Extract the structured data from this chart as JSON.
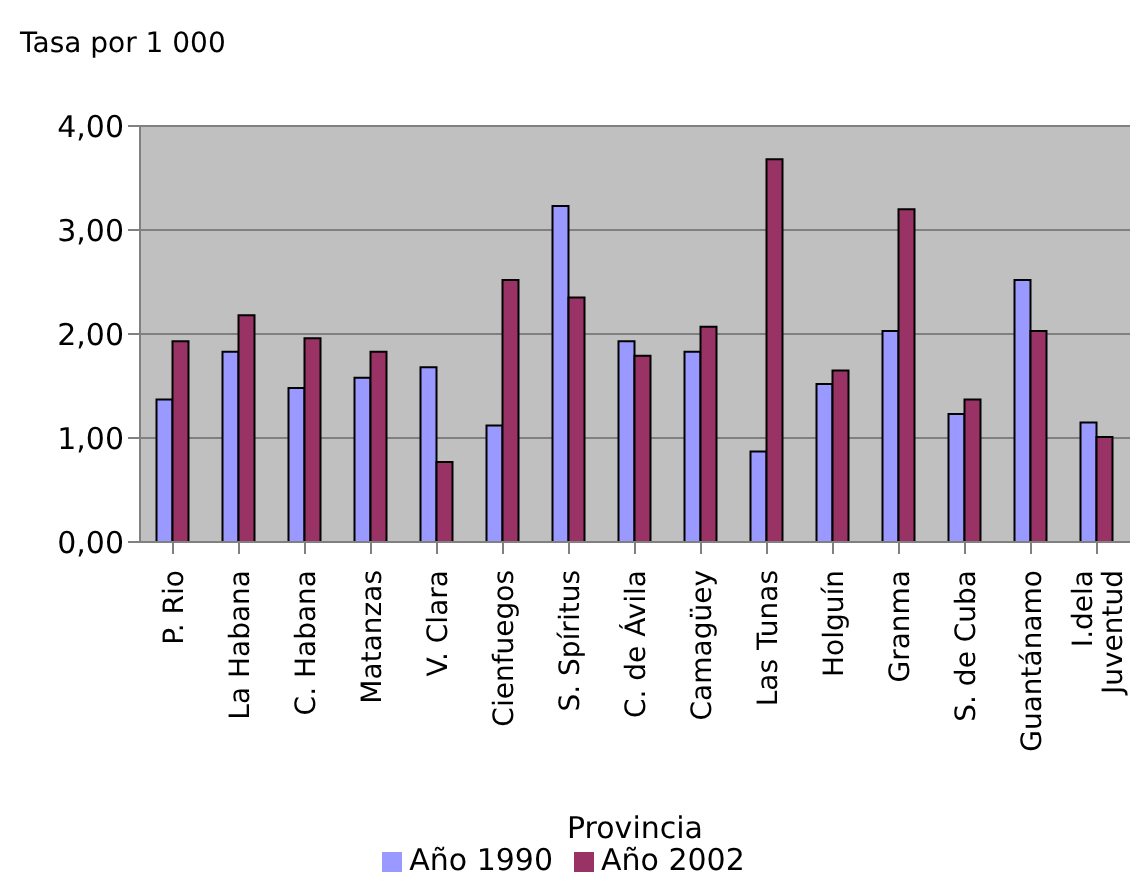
{
  "chart_data": {
    "type": "bar",
    "ylabel": "Tasa por 1 000",
    "xlabel": "Provincia",
    "categories": [
      "P. Rio",
      "La Habana",
      "C. Habana",
      "Matanzas",
      "V. Clara",
      "Cienfuegos",
      "S. Spíritus",
      "C. de Ávila",
      "Camagüey",
      "Las Tunas",
      "Holguín",
      "Granma",
      "S. de Cuba",
      "Guantánamo",
      "I.dela Juventud"
    ],
    "series": [
      {
        "name": "Año 1990",
        "color": "#9999ff",
        "values": [
          1.37,
          1.83,
          1.48,
          1.58,
          1.68,
          1.12,
          3.23,
          1.93,
          1.83,
          0.87,
          1.52,
          2.03,
          1.23,
          2.52,
          1.15
        ]
      },
      {
        "name": "Año 2002",
        "color": "#993366",
        "values": [
          1.93,
          2.18,
          1.96,
          1.83,
          0.77,
          2.52,
          2.35,
          1.79,
          2.07,
          3.68,
          1.65,
          3.2,
          1.37,
          2.03,
          1.01
        ]
      }
    ],
    "ylim": [
      0,
      4
    ],
    "yticks": [
      {
        "value": 0,
        "label": "0,00"
      },
      {
        "value": 1,
        "label": "1,00"
      },
      {
        "value": 2,
        "label": "2,00"
      },
      {
        "value": 3,
        "label": "3,00"
      },
      {
        "value": 4,
        "label": "4,00"
      }
    ],
    "grid": "y",
    "legend": "bottom"
  }
}
